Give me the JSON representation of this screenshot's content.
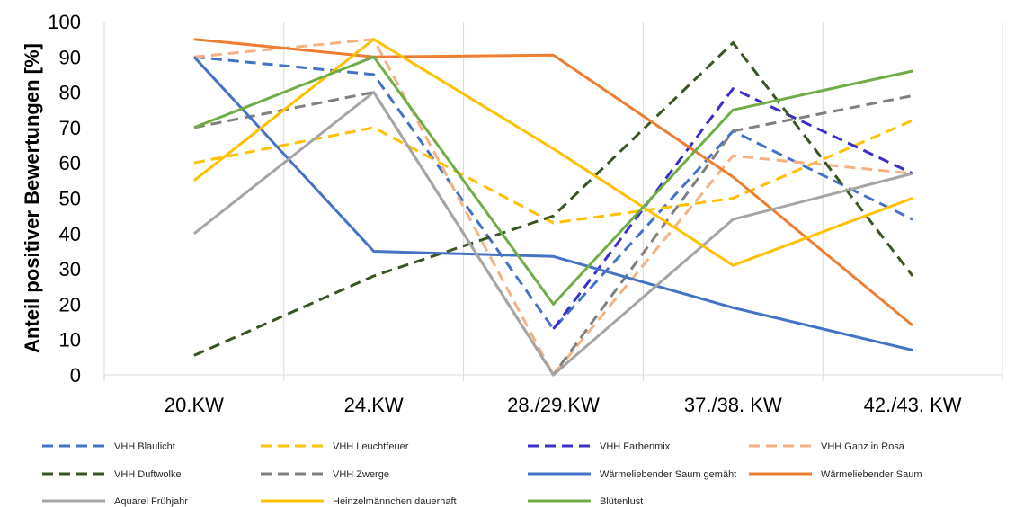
{
  "chart_data": {
    "type": "line",
    "ylabel": "Anteil positiver Bewertungen [%]",
    "xlabel": "",
    "categories": [
      "20.KW",
      "24.KW",
      "28./29.KW",
      "37./38. KW",
      "42./43. KW"
    ],
    "ylim": [
      0,
      100
    ],
    "yticks": [
      "0",
      "10",
      "20",
      "30",
      "40",
      "50",
      "60",
      "70",
      "80",
      "90",
      "100"
    ],
    "grid": "vertical-category-lines",
    "legend_position": "bottom",
    "series": [
      {
        "name": "VHH Blaulicht",
        "values": [
          90,
          85,
          13,
          69,
          44
        ],
        "color": "#4472C4",
        "dash": "dashed"
      },
      {
        "name": "VHH Leuchtfeuer",
        "values": [
          60,
          70,
          43,
          50,
          72
        ],
        "color": "#FFC000",
        "dash": "dashed"
      },
      {
        "name": "VHH Farbenmix",
        "values": [
          null,
          null,
          13,
          81,
          57
        ],
        "color": "#3B2FC9",
        "dash": "dashed"
      },
      {
        "name": "VHH Ganz in Rosa",
        "values": [
          90,
          95,
          0,
          62,
          57
        ],
        "color": "#F4B183",
        "dash": "dashed"
      },
      {
        "name": "VHH Duftwolke",
        "values": [
          5.5,
          28,
          45,
          94,
          28
        ],
        "color": "#375623",
        "dash": "dashed"
      },
      {
        "name": "VHH Zwerge",
        "values": [
          70,
          80,
          0,
          69,
          79
        ],
        "color": "#7F7F7F",
        "dash": "dashed"
      },
      {
        "name": "Wärmeliebender Saum gemäht",
        "values": [
          90,
          35,
          33.5,
          19,
          7
        ],
        "color": "#4472C4",
        "dash": "solid"
      },
      {
        "name": "Wärmeliebender Saum",
        "values": [
          95,
          90,
          90.5,
          56,
          14
        ],
        "color": "#ED7D31",
        "dash": "solid"
      },
      {
        "name": "Aquarel Frühjahr",
        "values": [
          40,
          80,
          0,
          44,
          57
        ],
        "color": "#A5A5A5",
        "dash": "solid"
      },
      {
        "name": "Heinzelmännchen dauerhaft",
        "values": [
          55,
          95,
          64,
          31,
          50
        ],
        "color": "#FFC000",
        "dash": "solid"
      },
      {
        "name": "Blütenlust",
        "values": [
          70,
          90,
          20,
          75,
          86
        ],
        "color": "#70AD47",
        "dash": "solid"
      }
    ]
  }
}
